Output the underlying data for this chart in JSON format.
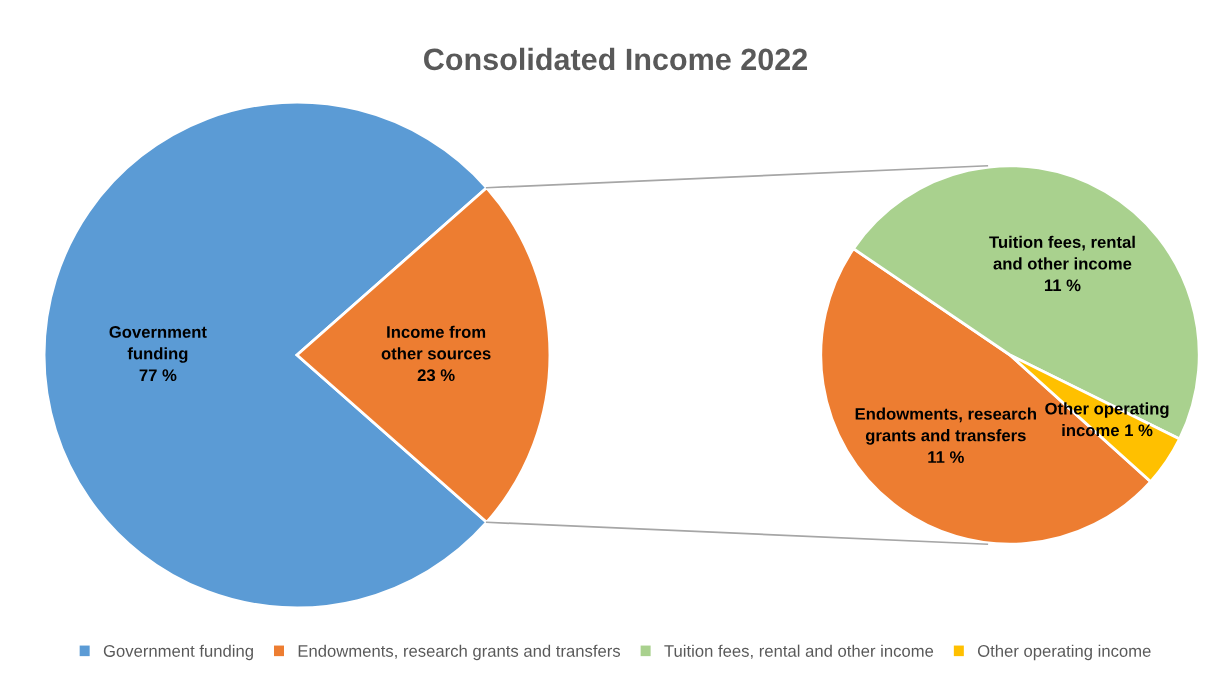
{
  "chart_data": [
    {
      "type": "pie",
      "title": "Consolidated Income 2022",
      "categories": [
        "Government funding",
        "Income from other sources"
      ],
      "values": [
        77,
        23
      ],
      "colors": [
        "#5b9bd5",
        "#ed7d31"
      ],
      "value_labels": [
        "77 %",
        "23 %"
      ],
      "legend": "bottom"
    },
    {
      "type": "pie",
      "categories": [
        "Endowments, research grants and transfers",
        "Tuition fees, rental and other income",
        "Other operating income"
      ],
      "values": [
        11,
        11,
        1
      ],
      "colors": [
        "#ed7d31",
        "#a9d18e",
        "#ffc000"
      ],
      "value_labels": [
        "11 %",
        "11 %",
        "1 %"
      ],
      "legend": "bottom"
    }
  ]
}
